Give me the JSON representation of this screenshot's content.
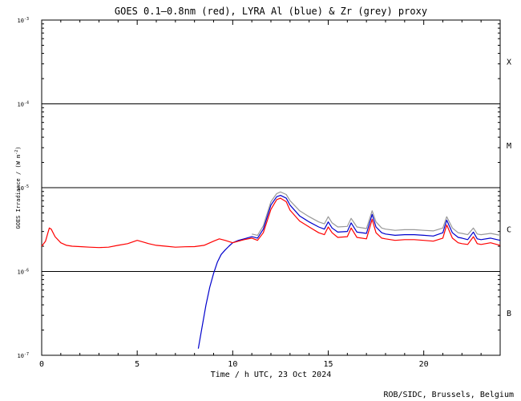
{
  "chart_data": {
    "type": "line",
    "title": "GOES 0.1–0.8nm (red), LYRA Al (blue) & Zr (grey) proxy",
    "xlabel": "Time / h UTC, 23 Oct 2024",
    "ylabel": "GOES Irradiance / (W m",
    "ylabel_sup": "-2",
    "ylabel_close": ")",
    "xlim": [
      0,
      24
    ],
    "ylim_log10": [
      -7,
      -3
    ],
    "x_ticks": [
      {
        "value": 0,
        "label": "0"
      },
      {
        "value": 5,
        "label": "5"
      },
      {
        "value": 10,
        "label": "10"
      },
      {
        "value": 15,
        "label": "15"
      },
      {
        "value": 20,
        "label": "20"
      }
    ],
    "y_ticks": [
      {
        "exp": -3,
        "base": "10",
        "sup": "-3"
      },
      {
        "exp": -4,
        "base": "10",
        "sup": "-4"
      },
      {
        "exp": -5,
        "base": "10",
        "sup": "-5"
      },
      {
        "exp": -6,
        "base": "10",
        "sup": "-6"
      },
      {
        "exp": -7,
        "base": "10",
        "sup": "-7"
      }
    ],
    "class_lines_exp": [
      -4,
      -5,
      -6
    ],
    "flare_classes": [
      {
        "label": "X",
        "exp": -3.5
      },
      {
        "label": "M",
        "exp": -4.5
      },
      {
        "label": "C",
        "exp": -5.5
      },
      {
        "label": "B",
        "exp": -6.5
      }
    ],
    "series": [
      {
        "name": "GOES 0.1-0.8nm",
        "color": "#ff0000",
        "x": [
          0.0,
          0.2,
          0.4,
          0.5,
          0.7,
          1.0,
          1.3,
          1.6,
          2.0,
          2.5,
          3.0,
          3.5,
          4.0,
          4.5,
          5.0,
          5.3,
          5.6,
          6.0,
          6.5,
          7.0,
          7.5,
          8.0,
          8.5,
          9.0,
          9.3,
          9.6,
          10.0,
          10.3,
          10.6,
          11.0,
          11.3,
          11.6,
          12.0,
          12.3,
          12.5,
          12.8,
          13.0,
          13.5,
          14.0,
          14.5,
          14.8,
          15.0,
          15.2,
          15.5,
          16.0,
          16.2,
          16.5,
          17.0,
          17.3,
          17.5,
          17.8,
          18.0,
          18.5,
          19.0,
          19.5,
          20.0,
          20.5,
          21.0,
          21.2,
          21.5,
          21.8,
          22.0,
          22.3,
          22.6,
          22.8,
          23.0,
          23.5,
          24.0
        ],
        "y": [
          2e-06,
          2.3e-06,
          3.3e-06,
          3.2e-06,
          2.6e-06,
          2.2e-06,
          2.05e-06,
          2e-06,
          1.98e-06,
          1.95e-06,
          1.93e-06,
          1.95e-06,
          2.05e-06,
          2.15e-06,
          2.35e-06,
          2.25e-06,
          2.15e-06,
          2.05e-06,
          2e-06,
          1.95e-06,
          1.97e-06,
          1.98e-06,
          2.05e-06,
          2.3e-06,
          2.45e-06,
          2.35e-06,
          2.2e-06,
          2.3e-06,
          2.4e-06,
          2.5e-06,
          2.35e-06,
          2.9e-06,
          5.5e-06,
          7.2e-06,
          7.5e-06,
          6.8e-06,
          5.4e-06,
          4e-06,
          3.4e-06,
          2.9e-06,
          2.75e-06,
          3.4e-06,
          2.9e-06,
          2.55e-06,
          2.6e-06,
          3.3e-06,
          2.55e-06,
          2.45e-06,
          4.2e-06,
          2.9e-06,
          2.5e-06,
          2.45e-06,
          2.35e-06,
          2.4e-06,
          2.4e-06,
          2.35e-06,
          2.3e-06,
          2.5e-06,
          3.6e-06,
          2.5e-06,
          2.2e-06,
          2.15e-06,
          2.1e-06,
          2.6e-06,
          2.15e-06,
          2.1e-06,
          2.2e-06,
          2.05e-06
        ]
      },
      {
        "name": "LYRA Al proxy",
        "color": "#0000cc",
        "x": [
          8.2,
          8.4,
          8.6,
          8.8,
          9.0,
          9.2,
          9.4,
          9.6,
          9.8,
          10.0,
          10.3,
          10.6,
          11.0,
          11.3,
          11.6,
          12.0,
          12.3,
          12.5,
          12.8,
          13.0,
          13.5,
          14.0,
          14.5,
          14.8,
          15.0,
          15.2,
          15.5,
          16.0,
          16.2,
          16.5,
          17.0,
          17.3,
          17.5,
          17.8,
          18.0,
          18.5,
          19.0,
          19.5,
          20.0,
          20.5,
          21.0,
          21.2,
          21.5,
          21.8,
          22.0,
          22.3,
          22.6,
          22.8,
          23.0,
          23.5,
          24.0
        ],
        "y": [
          1.2e-07,
          2.2e-07,
          4e-07,
          6.5e-07,
          9.5e-07,
          1.3e-06,
          1.6e-06,
          1.8e-06,
          2e-06,
          2.2e-06,
          2.35e-06,
          2.45e-06,
          2.6e-06,
          2.5e-06,
          3.2e-06,
          6.2e-06,
          7.8e-06,
          8.1e-06,
          7.5e-06,
          6.2e-06,
          4.6e-06,
          3.9e-06,
          3.4e-06,
          3.2e-06,
          3.9e-06,
          3.3e-06,
          2.95e-06,
          3e-06,
          3.8e-06,
          2.95e-06,
          2.85e-06,
          4.8e-06,
          3.4e-06,
          2.9e-06,
          2.8e-06,
          2.7e-06,
          2.75e-06,
          2.75e-06,
          2.7e-06,
          2.65e-06,
          2.9e-06,
          4.1e-06,
          2.9e-06,
          2.55e-06,
          2.5e-06,
          2.4e-06,
          2.95e-06,
          2.45e-06,
          2.4e-06,
          2.5e-06,
          2.35e-06
        ]
      },
      {
        "name": "LYRA Zr proxy",
        "color": "#999999",
        "x": [
          11.0,
          11.3,
          11.6,
          12.0,
          12.3,
          12.5,
          12.8,
          13.0,
          13.5,
          14.0,
          14.5,
          14.8,
          15.0,
          15.2,
          15.5,
          16.0,
          16.2,
          16.5,
          17.0,
          17.3,
          17.5,
          17.8,
          18.0,
          18.5,
          19.0,
          19.5,
          20.0,
          20.5,
          21.0,
          21.2,
          21.5,
          21.8,
          22.0,
          22.3,
          22.6,
          22.8,
          23.0,
          23.5,
          24.0
        ],
        "y": [
          2.8e-06,
          2.7e-06,
          3.5e-06,
          6.8e-06,
          8.5e-06,
          8.9e-06,
          8.3e-06,
          7e-06,
          5.3e-06,
          4.5e-06,
          3.9e-06,
          3.7e-06,
          4.5e-06,
          3.8e-06,
          3.4e-06,
          3.45e-06,
          4.3e-06,
          3.4e-06,
          3.25e-06,
          5.3e-06,
          3.9e-06,
          3.3e-06,
          3.2e-06,
          3.1e-06,
          3.15e-06,
          3.15e-06,
          3.1e-06,
          3.05e-06,
          3.3e-06,
          4.5e-06,
          3.3e-06,
          2.9e-06,
          2.85e-06,
          2.75e-06,
          3.3e-06,
          2.8e-06,
          2.75e-06,
          2.85e-06,
          2.7e-06
        ]
      }
    ]
  },
  "credit": "ROB/SIDC, Brussels, Belgium"
}
